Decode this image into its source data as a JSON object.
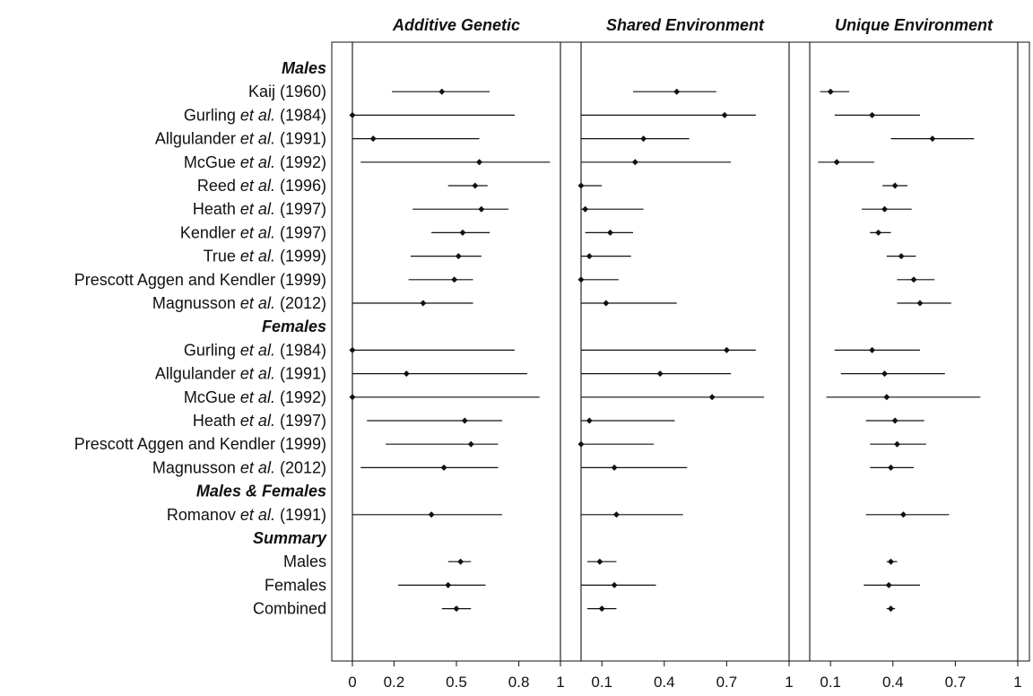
{
  "chart_data": {
    "type": "forest",
    "panels": [
      {
        "title": "Additive Genetic",
        "xlim": [
          0,
          1
        ],
        "ticks": [
          {
            "v": 0,
            "label": "0"
          },
          {
            "v": 0.2,
            "label": "0.2"
          },
          {
            "v": 0.5,
            "label": "0.5"
          },
          {
            "v": 0.8,
            "label": "0.8"
          },
          {
            "v": 1,
            "label": "1"
          }
        ]
      },
      {
        "title": "Shared Environment",
        "xlim": [
          0,
          1
        ],
        "ticks": [
          {
            "v": 0.1,
            "label": "0.1"
          },
          {
            "v": 0.4,
            "label": "0.4"
          },
          {
            "v": 0.7,
            "label": "0.7"
          },
          {
            "v": 1,
            "label": "1"
          }
        ]
      },
      {
        "title": "Unique Environment",
        "xlim": [
          0,
          1
        ],
        "ticks": [
          {
            "v": 0.1,
            "label": "0.1"
          },
          {
            "v": 0.4,
            "label": "0.4"
          },
          {
            "v": 0.7,
            "label": "0.7"
          },
          {
            "v": 1,
            "label": "1"
          }
        ]
      }
    ],
    "rows": [
      {
        "section": true,
        "label": "Males"
      },
      {
        "label": "Kaij",
        "italic": "",
        "year": "(1960)",
        "est": [
          [
            0.43,
            0.19,
            0.66
          ],
          [
            0.46,
            0.25,
            0.65
          ],
          [
            0.1,
            0.05,
            0.19
          ]
        ]
      },
      {
        "label": "Gurling",
        "italic": "et al.",
        "year": "(1984)",
        "est": [
          [
            0.0,
            0.0,
            0.78
          ],
          [
            0.69,
            0.0,
            0.84
          ],
          [
            0.3,
            0.12,
            0.53
          ]
        ]
      },
      {
        "label": "Allgulander",
        "italic": "et al.",
        "year": "(1991)",
        "est": [
          [
            0.1,
            0.0,
            0.61
          ],
          [
            0.3,
            0.0,
            0.52
          ],
          [
            0.59,
            0.39,
            0.79
          ]
        ]
      },
      {
        "label": "McGue",
        "italic": "et al.",
        "year": "(1992)",
        "est": [
          [
            0.61,
            0.04,
            0.95
          ],
          [
            0.26,
            0.0,
            0.72
          ],
          [
            0.13,
            0.04,
            0.31
          ]
        ]
      },
      {
        "label": "Reed",
        "italic": "et al.",
        "year": "(1996)",
        "est": [
          [
            0.59,
            0.46,
            0.65
          ],
          [
            0.0,
            0.0,
            0.1
          ],
          [
            0.41,
            0.35,
            0.47
          ]
        ]
      },
      {
        "label": "Heath",
        "italic": "et al.",
        "year": "(1997)",
        "est": [
          [
            0.62,
            0.29,
            0.75
          ],
          [
            0.02,
            0.0,
            0.3
          ],
          [
            0.36,
            0.25,
            0.49
          ]
        ]
      },
      {
        "label": "Kendler",
        "italic": "et al.",
        "year": "(1997)",
        "est": [
          [
            0.53,
            0.38,
            0.66
          ],
          [
            0.14,
            0.02,
            0.25
          ],
          [
            0.33,
            0.29,
            0.39
          ]
        ]
      },
      {
        "label": "True",
        "italic": "et al.",
        "year": "(1999)",
        "est": [
          [
            0.51,
            0.28,
            0.62
          ],
          [
            0.04,
            0.0,
            0.24
          ],
          [
            0.44,
            0.37,
            0.51
          ]
        ]
      },
      {
        "label": "Prescott Aggen and Kendler",
        "italic": "",
        "year": "(1999)",
        "est": [
          [
            0.49,
            0.27,
            0.58
          ],
          [
            0.0,
            0.0,
            0.18
          ],
          [
            0.5,
            0.42,
            0.6
          ]
        ]
      },
      {
        "label": "Magnusson",
        "italic": "et al.",
        "year": "(2012)",
        "est": [
          [
            0.34,
            0.0,
            0.58
          ],
          [
            0.12,
            0.0,
            0.46
          ],
          [
            0.53,
            0.42,
            0.68
          ]
        ]
      },
      {
        "section": true,
        "label": "Females"
      },
      {
        "label": "Gurling",
        "italic": "et al.",
        "year": "(1984)",
        "est": [
          [
            0.0,
            0.0,
            0.78
          ],
          [
            0.7,
            0.0,
            0.84
          ],
          [
            0.3,
            0.12,
            0.53
          ]
        ]
      },
      {
        "label": "Allgulander",
        "italic": "et al.",
        "year": "(1991)",
        "est": [
          [
            0.26,
            0.0,
            0.84
          ],
          [
            0.38,
            0.0,
            0.72
          ],
          [
            0.36,
            0.15,
            0.65
          ]
        ]
      },
      {
        "label": "McGue",
        "italic": "et al.",
        "year": "(1992)",
        "est": [
          [
            0.0,
            0.0,
            0.9
          ],
          [
            0.63,
            0.0,
            0.88
          ],
          [
            0.37,
            0.08,
            0.82
          ]
        ]
      },
      {
        "label": "Heath",
        "italic": "et al.",
        "year": "(1997)",
        "est": [
          [
            0.54,
            0.07,
            0.72
          ],
          [
            0.04,
            0.0,
            0.45
          ],
          [
            0.41,
            0.27,
            0.55
          ]
        ]
      },
      {
        "label": "Prescott Aggen and Kendler",
        "italic": "",
        "year": "(1999)",
        "est": [
          [
            0.57,
            0.16,
            0.7
          ],
          [
            0.0,
            0.0,
            0.35
          ],
          [
            0.42,
            0.29,
            0.56
          ]
        ]
      },
      {
        "label": "Magnusson",
        "italic": "et al.",
        "year": "(2012)",
        "est": [
          [
            0.44,
            0.04,
            0.7
          ],
          [
            0.16,
            0.0,
            0.51
          ],
          [
            0.39,
            0.29,
            0.5
          ]
        ]
      },
      {
        "section": true,
        "label": "Males & Females"
      },
      {
        "label": "Romanov",
        "italic": "et al.",
        "year": "(1991)",
        "est": [
          [
            0.38,
            0.0,
            0.72
          ],
          [
            0.17,
            0.0,
            0.49
          ],
          [
            0.45,
            0.27,
            0.67
          ]
        ]
      },
      {
        "section": true,
        "label": "Summary"
      },
      {
        "label": "Males",
        "italic": "",
        "year": "",
        "est": [
          [
            0.52,
            0.46,
            0.57
          ],
          [
            0.09,
            0.03,
            0.17
          ],
          [
            0.39,
            0.37,
            0.42
          ]
        ]
      },
      {
        "label": "Females",
        "italic": "",
        "year": "",
        "est": [
          [
            0.46,
            0.22,
            0.64
          ],
          [
            0.16,
            0.0,
            0.36
          ],
          [
            0.38,
            0.26,
            0.53
          ]
        ]
      },
      {
        "label": "Combined",
        "italic": "",
        "year": "",
        "est": [
          [
            0.5,
            0.43,
            0.57
          ],
          [
            0.1,
            0.03,
            0.17
          ],
          [
            0.39,
            0.37,
            0.41
          ]
        ]
      }
    ]
  }
}
